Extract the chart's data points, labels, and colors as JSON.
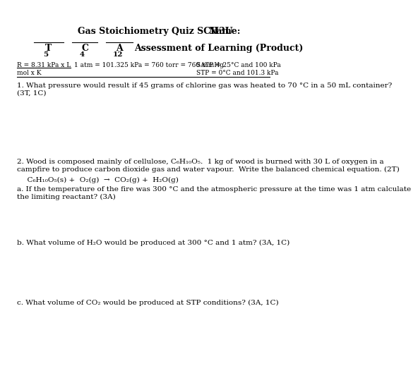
{
  "bg_color": "#ffffff",
  "text_color": "#000000",
  "title_left": "Gas Stoichiometry Quiz SCH3U",
  "title_right": "Name:",
  "t_label": "T",
  "c_label": "C",
  "a_label": "A",
  "num5": "5",
  "num4": "4",
  "num12": "12",
  "ref1a": "R = 8.31 kPa x L",
  "ref1b": "1 atm = 101.325 kPa = 760 torr = 760 mmHg",
  "ref1c": "SATP = 25°C and 100 kPa",
  "ref2a": "mol x K",
  "ref2b": "STP = 0°C and 101.3 kPa",
  "q1": "1. What pressure would result if 45 grams of chlorine gas was heated to 70 °C in a 50 mL container?\n(3T, 1C)",
  "q2_intro": "2. Wood is composed mainly of cellulose, C₆H₁₀O₅.  1 kg of wood is burned with 30 L of oxygen in a\ncampfire to produce carbon dioxide gas and water vapour.  Write the balanced chemical equation. (2T)",
  "q2_eq": "  C₆H₁₀O₅(s) +  O₂(g)  →  CO₂(g) +  H₂O(g)",
  "q2a": "a. If the temperature of the fire was 300 °C and the atmospheric pressure at the time was 1 atm calculate\nthe limiting reactant? (3A)",
  "q2b": "b. What volume of H₂O would be produced at 300 °C and 1 atm? (3A, 1C)",
  "q2c": "c. What volume of CO₂ would be produced at STP conditions? (3A, 1C)"
}
